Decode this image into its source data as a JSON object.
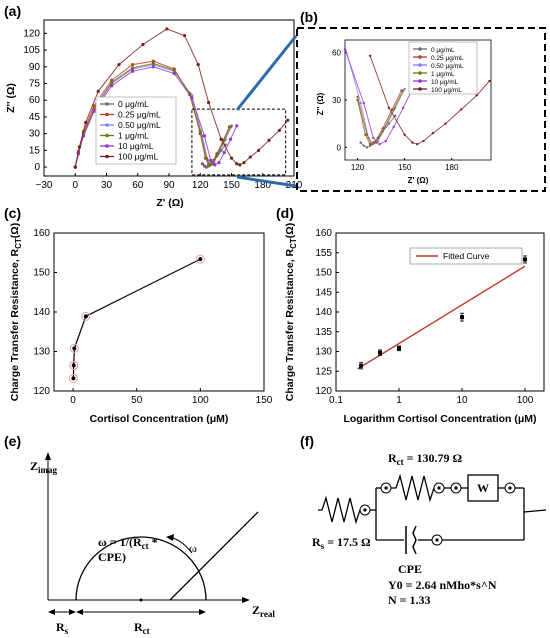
{
  "panels": {
    "a": "(a)",
    "b": "(b)",
    "c": "(c)",
    "d": "(d)",
    "e": "(e)",
    "f": "(f)"
  },
  "colors": {
    "s0": "#6b6b6b",
    "s025": "#c0392b",
    "s050": "#8080ff",
    "s1": "#6b7a00",
    "s10": "#9b30d0",
    "s100": "#7a1f1f",
    "fit": "#c0392b",
    "frame": "#000000",
    "zoom": "#2e6aa8"
  },
  "chart_data": [
    {
      "id": "a",
      "type": "line",
      "xlabel": "Z' (Ω)",
      "ylabel": "Z'' (Ω)",
      "xlim": [
        -30,
        210
      ],
      "ylim": [
        -8,
        132
      ],
      "xticks": [
        "−30",
        "0",
        "30",
        "60",
        "90",
        "120",
        "150",
        "180",
        "210"
      ],
      "xtick_vals": [
        -30,
        0,
        30,
        60,
        90,
        120,
        150,
        180,
        210
      ],
      "yticks": [
        "0",
        "15",
        "30",
        "45",
        "60",
        "75",
        "90",
        "105",
        "120"
      ],
      "ytick_vals": [
        0,
        15,
        30,
        45,
        60,
        75,
        90,
        105,
        120
      ],
      "series": [
        {
          "name": "0 μg/mL",
          "color": "#6b6b6b",
          "x": [
            122,
            124,
            126,
            128,
            130,
            133,
            136,
            140,
            144
          ],
          "y": [
            3,
            1,
            0,
            1,
            3,
            6,
            10,
            15,
            20
          ]
        },
        {
          "name": "0.25 μg/mL",
          "color": "#c0392b",
          "x": [
            0,
            3,
            8,
            18,
            35,
            55,
            75,
            95,
            110,
            120,
            125,
            128,
            131,
            136,
            142,
            148
          ],
          "y": [
            0,
            14,
            32,
            55,
            78,
            92,
            95,
            88,
            65,
            30,
            8,
            2,
            3,
            12,
            24,
            36
          ]
        },
        {
          "name": "0.50 μg/mL",
          "color": "#8080ff",
          "x": [
            0,
            3,
            8,
            18,
            35,
            55,
            75,
            95,
            112,
            122,
            127,
            130,
            133,
            138,
            144,
            150
          ],
          "y": [
            0,
            13,
            30,
            52,
            75,
            88,
            92,
            86,
            64,
            28,
            6,
            2,
            4,
            13,
            25,
            37
          ]
        },
        {
          "name": "1 μg/mL",
          "color": "#6b7a00",
          "x": [
            0,
            3,
            8,
            18,
            35,
            55,
            75,
            95,
            110,
            120,
            126,
            129,
            132,
            137,
            143,
            149
          ],
          "y": [
            0,
            13,
            30,
            52,
            76,
            89,
            93,
            87,
            66,
            32,
            8,
            2,
            3,
            12,
            24,
            36
          ]
        },
        {
          "name": "10 μg/mL",
          "color": "#9b30d0",
          "x": [
            0,
            3,
            8,
            18,
            35,
            55,
            75,
            95,
            112,
            124,
            130,
            134,
            138,
            143,
            149,
            155
          ],
          "y": [
            0,
            12,
            28,
            50,
            73,
            86,
            90,
            84,
            62,
            28,
            6,
            2,
            4,
            13,
            25,
            37
          ]
        },
        {
          "name": "100 μg/mL",
          "color": "#7a1f1f",
          "x": [
            0,
            4,
            10,
            22,
            42,
            65,
            88,
            105,
            118,
            128,
            140,
            150,
            155,
            158,
            162,
            168,
            176,
            186,
            196,
            204
          ],
          "y": [
            0,
            18,
            40,
            68,
            92,
            110,
            124,
            118,
            92,
            58,
            25,
            8,
            3,
            2,
            4,
            9,
            15,
            24,
            33,
            42
          ]
        }
      ],
      "zoom_box": {
        "x": [
          112,
          202
        ],
        "y": [
          -7,
          52
        ]
      }
    },
    {
      "id": "b",
      "type": "line",
      "xlabel": "Z' (Ω)",
      "ylabel": "Z'' (Ω)",
      "xlim": [
        112,
        205
      ],
      "ylim": [
        -8,
        68
      ],
      "xticks": [
        "120",
        "150",
        "180"
      ],
      "xtick_vals": [
        120,
        150,
        180
      ],
      "yticks": [
        "0",
        "30",
        "60"
      ],
      "ytick_vals": [
        0,
        30,
        60
      ],
      "series_ref": "a"
    },
    {
      "id": "c",
      "type": "line",
      "xlabel": "Cortisol Concentration (μM)",
      "ylabel": "Charge Transfer Resistance, R_CT(Ω)",
      "ylabel_main": "Charge Transfer Resistance, R",
      "ylabel_sub": "CT",
      "ylabel_end": "(Ω)",
      "xlim": [
        -15,
        150
      ],
      "ylim": [
        120,
        160
      ],
      "xticks": [
        "0",
        "50",
        "100",
        "150"
      ],
      "xtick_vals": [
        0,
        50,
        100,
        150
      ],
      "yticks": [
        "120",
        "130",
        "140",
        "150",
        "160"
      ],
      "ytick_vals": [
        120,
        130,
        140,
        150,
        160
      ],
      "x": [
        0.25,
        0.5,
        1,
        10,
        100
      ],
      "y": [
        123.2,
        126.5,
        130.8,
        138.9,
        153.4
      ]
    },
    {
      "id": "d",
      "type": "scatter",
      "xlabel": "Logarithm Cortisol Concentration (μM)",
      "ylabel_main": "Charge Transfer Resistance, R",
      "ylabel_sub": "CT",
      "ylabel_end": "(Ω)",
      "xscale": "log",
      "xlim": [
        0.1,
        200
      ],
      "ylim": [
        120,
        160
      ],
      "xticks": [
        "0.1",
        "1",
        "10",
        "100"
      ],
      "xtick_vals": [
        0.1,
        1,
        10,
        100
      ],
      "yticks": [
        "120",
        "125",
        "130",
        "135",
        "140",
        "145",
        "150",
        "155",
        "160"
      ],
      "ytick_vals": [
        120,
        125,
        130,
        135,
        140,
        145,
        150,
        155,
        160
      ],
      "x": [
        0.25,
        0.5,
        1,
        10,
        100
      ],
      "y": [
        126.4,
        129.7,
        130.8,
        138.7,
        153.3
      ],
      "err": [
        0.8,
        0.7,
        0.6,
        1.0,
        0.9
      ],
      "fit": {
        "name": "Fitted Curve",
        "x": [
          0.22,
          100
        ],
        "y": [
          125.6,
          151.6
        ]
      }
    }
  ],
  "diagram_e": {
    "y_axis_label": "Z",
    "y_axis_sub": "imag",
    "x_axis_label": "Z",
    "x_axis_sub": "real",
    "omega_eq_line1": "ω  = 1/(R",
    "omega_eq_sub": "ct",
    "omega_eq_line1_end": " *",
    "omega_eq_line2": "CPE)",
    "omega": "ω",
    "rs_label": "R",
    "rs_sub": "s",
    "rct_label": "R",
    "rct_sub": "ct"
  },
  "circuit_f": {
    "rct_prefix": "R",
    "rct_sub": "ct",
    "rct_value": " = 130.79 Ω",
    "rs_prefix": "R",
    "rs_sub": "s",
    "rs_value": " = 17.5 Ω",
    "warburg": "W",
    "cpe_title": "CPE",
    "cpe_y0": "Y0 = 2.64 nMho*s^N",
    "cpe_n": "N = 1.33"
  }
}
